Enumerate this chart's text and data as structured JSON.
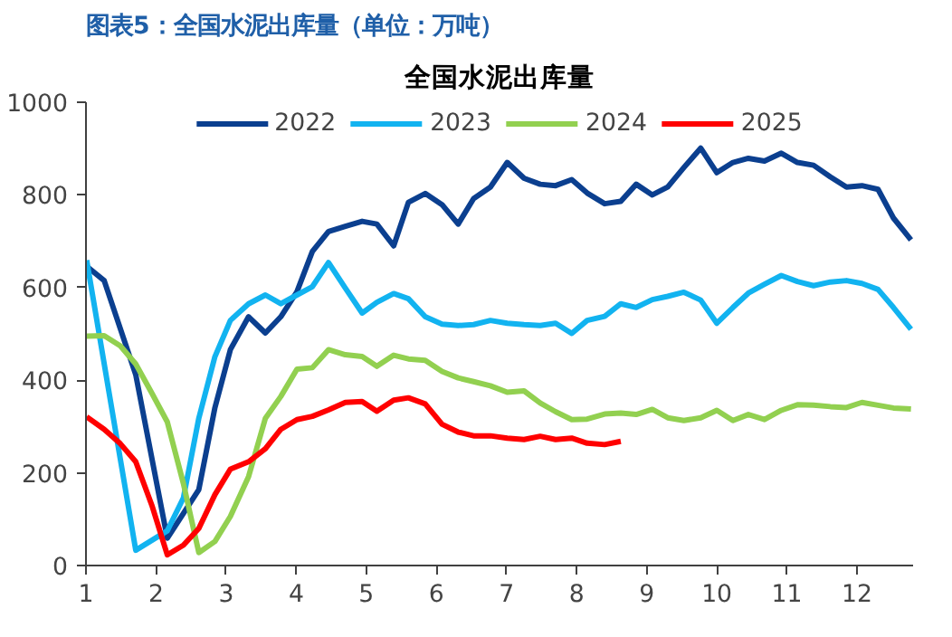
{
  "chart_data": {
    "type": "line",
    "title": "图表5：全国水泥出库量（单位：万吨）",
    "subtitle": "全国水泥出库量",
    "xlim": [
      1,
      12.8
    ],
    "xticks": [
      1,
      2,
      3,
      4,
      5,
      6,
      7,
      8,
      9,
      10,
      11,
      12
    ],
    "ylim": [
      0,
      1000
    ],
    "yticks": [
      0,
      200,
      400,
      600,
      800,
      1000
    ],
    "grid": false,
    "legend": "top",
    "marker": "none",
    "line_style": "solid",
    "series": [
      {
        "name": "2022",
        "color": "#0b3f8f",
        "x": [
          1.01,
          1.26,
          1.71,
          2.16,
          2.61,
          2.84,
          3.06,
          3.32,
          3.56,
          3.78,
          4.01,
          4.23,
          4.46,
          4.7,
          4.94,
          5.15,
          5.39,
          5.6,
          5.84,
          6.08,
          6.31,
          6.53,
          6.77,
          7.01,
          7.25,
          7.48,
          7.7,
          7.93,
          8.15,
          8.4,
          8.63,
          8.85,
          9.08,
          9.3,
          9.53,
          9.77,
          10.0,
          10.23,
          10.45,
          10.68,
          10.92,
          11.15,
          11.38,
          11.62,
          11.85,
          12.07,
          12.3,
          12.52,
          12.77
        ],
        "values": [
          646,
          615,
          412,
          59,
          164,
          341,
          466,
          537,
          502,
          537,
          591,
          678,
          721,
          732,
          743,
          737,
          690,
          784,
          803,
          779,
          737,
          792,
          817,
          870,
          836,
          823,
          820,
          833,
          804,
          781,
          786,
          823,
          800,
          817,
          859,
          901,
          848,
          870,
          879,
          873,
          890,
          870,
          864,
          839,
          817,
          820,
          812,
          750,
          703
        ]
      },
      {
        "name": "2023",
        "color": "#12b3f0",
        "x": [
          1.01,
          1.71,
          2.16,
          2.39,
          2.61,
          2.84,
          3.06,
          3.32,
          3.56,
          3.78,
          4.01,
          4.23,
          4.46,
          4.7,
          4.94,
          5.15,
          5.39,
          5.6,
          5.84,
          6.08,
          6.31,
          6.53,
          6.77,
          7.01,
          7.25,
          7.48,
          7.7,
          7.93,
          8.15,
          8.4,
          8.63,
          8.85,
          9.08,
          9.3,
          9.53,
          9.77,
          10.0,
          10.23,
          10.45,
          10.68,
          10.92,
          11.15,
          11.38,
          11.62,
          11.85,
          12.07,
          12.3,
          12.52,
          12.77
        ],
        "values": [
          659,
          33,
          75,
          146,
          318,
          451,
          529,
          565,
          584,
          565,
          584,
          602,
          654,
          599,
          545,
          568,
          587,
          576,
          537,
          521,
          518,
          520,
          529,
          523,
          520,
          518,
          523,
          501,
          529,
          538,
          565,
          557,
          574,
          581,
          590,
          573,
          523,
          557,
          588,
          607,
          626,
          613,
          604,
          612,
          615,
          609,
          596,
          557,
          510
        ]
      },
      {
        "name": "2024",
        "color": "#92d050",
        "x": [
          1.01,
          1.26,
          1.49,
          1.71,
          1.94,
          2.16,
          2.39,
          2.61,
          2.84,
          3.06,
          3.32,
          3.56,
          3.78,
          4.01,
          4.23,
          4.46,
          4.7,
          4.94,
          5.15,
          5.39,
          5.6,
          5.84,
          6.08,
          6.31,
          6.53,
          6.77,
          7.01,
          7.25,
          7.48,
          7.7,
          7.93,
          8.15,
          8.4,
          8.63,
          8.85,
          9.08,
          9.3,
          9.53,
          9.77,
          10.0,
          10.23,
          10.45,
          10.68,
          10.92,
          11.15,
          11.38,
          11.62,
          11.85,
          12.07,
          12.3,
          12.52,
          12.77
        ],
        "values": [
          495,
          496,
          474,
          435,
          372,
          310,
          177,
          28,
          52,
          106,
          192,
          318,
          365,
          424,
          427,
          466,
          455,
          451,
          430,
          454,
          446,
          443,
          419,
          405,
          397,
          388,
          374,
          377,
          351,
          332,
          315,
          316,
          327,
          329,
          326,
          337,
          319,
          313,
          319,
          335,
          313,
          326,
          315,
          335,
          347,
          346,
          343,
          341,
          352,
          346,
          340,
          338
        ]
      },
      {
        "name": "2025",
        "color": "#ff0000",
        "x": [
          1.01,
          1.26,
          1.49,
          1.71,
          1.94,
          2.16,
          2.39,
          2.61,
          2.84,
          3.06,
          3.32,
          3.56,
          3.78,
          4.01,
          4.23,
          4.46,
          4.7,
          4.94,
          5.15,
          5.39,
          5.6,
          5.84,
          6.08,
          6.31,
          6.53,
          6.77,
          7.01,
          7.25,
          7.48,
          7.7,
          7.93,
          8.15,
          8.4,
          8.63
        ],
        "values": [
          321,
          294,
          263,
          224,
          130,
          23,
          44,
          80,
          153,
          208,
          224,
          252,
          294,
          315,
          322,
          336,
          352,
          354,
          333,
          357,
          362,
          349,
          305,
          288,
          280,
          280,
          275,
          272,
          279,
          272,
          275,
          264,
          261,
          268
        ]
      }
    ]
  }
}
